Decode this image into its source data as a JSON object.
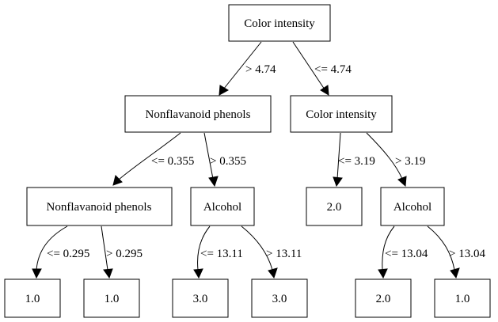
{
  "nodes": {
    "root": "Color intensity",
    "l1_left": "Nonflavanoid phenols",
    "l1_right": "Color intensity",
    "l2_a": "Nonflavanoid phenols",
    "l2_b": "Alcohol",
    "l2_c": "2.0",
    "l2_d": "Alcohol",
    "leaf_1": "1.0",
    "leaf_2": "1.0",
    "leaf_3": "3.0",
    "leaf_4": "3.0",
    "leaf_5": "2.0",
    "leaf_6": "1.0"
  },
  "edges": {
    "root_left": "> 4.74",
    "root_right": "<= 4.74",
    "l1l_left": "<= 0.355",
    "l1l_right": "> 0.355",
    "l1r_left": "<= 3.19",
    "l1r_right": "> 3.19",
    "a_left": "<= 0.295",
    "a_right": "> 0.295",
    "b_left": "<= 13.11",
    "b_right": "> 13.11",
    "d_left": "<= 13.04",
    "d_right": "> 13.04"
  }
}
